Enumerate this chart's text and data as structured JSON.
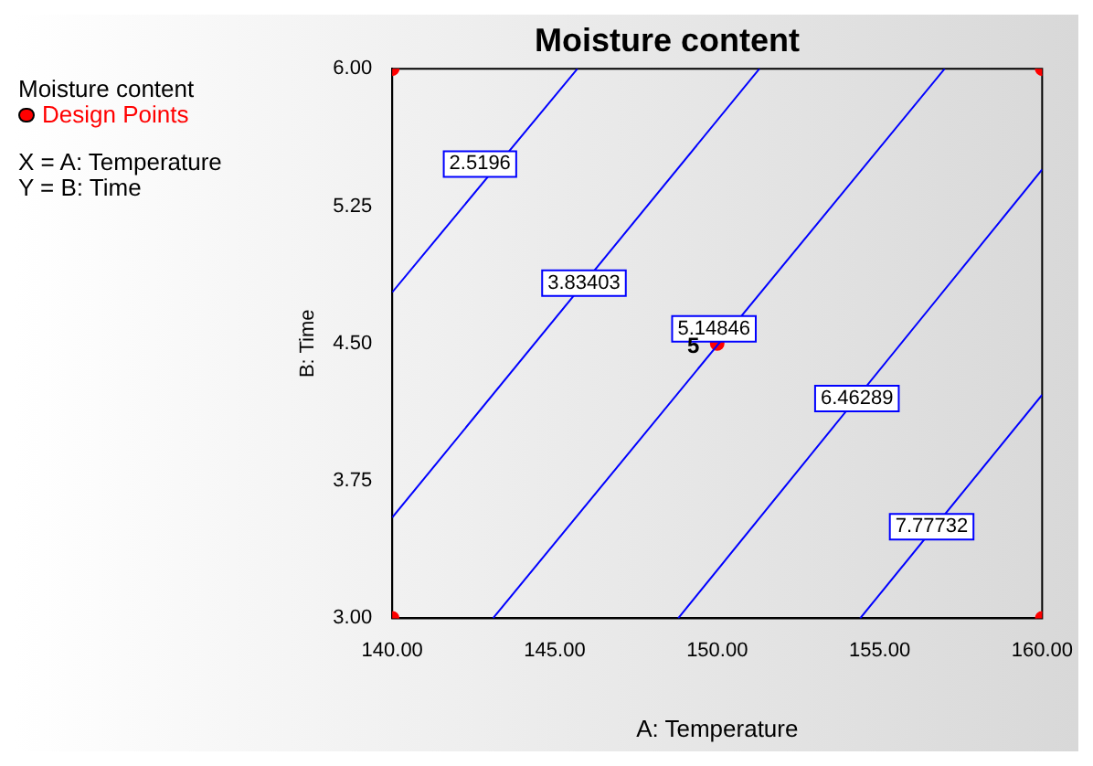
{
  "chart_data": {
    "type": "line",
    "title": "Moisture content",
    "xlabel": "A: Temperature",
    "ylabel": "B: Time",
    "xlim": [
      140,
      160
    ],
    "xticks": [
      {
        "value": 140,
        "label": "140.00"
      },
      {
        "value": 145,
        "label": "145.00"
      },
      {
        "value": 150,
        "label": "150.00"
      },
      {
        "value": 155,
        "label": "155.00"
      },
      {
        "value": 160,
        "label": "160.00"
      }
    ],
    "ylim": [
      3,
      6
    ],
    "yticks": [
      {
        "value": 3,
        "label": "3.00"
      },
      {
        "value": 3.75,
        "label": "3.75"
      },
      {
        "value": 4.5,
        "label": "4.50"
      },
      {
        "value": 5.25,
        "label": "5.25"
      },
      {
        "value": 6,
        "label": "6.00"
      }
    ],
    "series": [
      {
        "color": "#0000ff",
        "x": [
          140,
          145.7
        ],
        "values": [
          4.78,
          6
        ]
      },
      {
        "color": "#0000ff",
        "x": [
          140,
          151.3
        ],
        "values": [
          3.55,
          6
        ]
      },
      {
        "color": "#0000ff",
        "x": [
          143.1,
          157
        ],
        "values": [
          3,
          6
        ]
      },
      {
        "color": "#0000ff",
        "x": [
          148.8,
          160
        ],
        "values": [
          3,
          5.45
        ]
      },
      {
        "color": "#0000ff",
        "x": [
          154.4,
          160
        ],
        "values": [
          3,
          4.22
        ]
      },
      {
        "type": "scatter",
        "name": "Design Points",
        "color": "#ff0000",
        "marker": "circle",
        "x": [
          140,
          140,
          160,
          160,
          150
        ],
        "values": [
          3,
          6,
          3,
          6,
          4.5
        ]
      }
    ],
    "annotations": [
      "Moisture content",
      "X = A: Temperature",
      "Y = B: Time",
      {
        "text": "2.5196",
        "x": 142.7,
        "y": 5.48
      },
      {
        "text": "3.83403",
        "x": 145.9,
        "y": 4.83
      },
      {
        "text": "5.14846",
        "x": 149.9,
        "y": 4.58
      },
      {
        "text": "6.46289",
        "x": 154.3,
        "y": 4.2
      },
      {
        "text": "7.77732",
        "x": 156.6,
        "y": 3.5
      },
      {
        "text": "5",
        "x": 150,
        "y": 4.5
      }
    ],
    "legend": "top left",
    "line_style": "solid",
    "grid": false
  }
}
